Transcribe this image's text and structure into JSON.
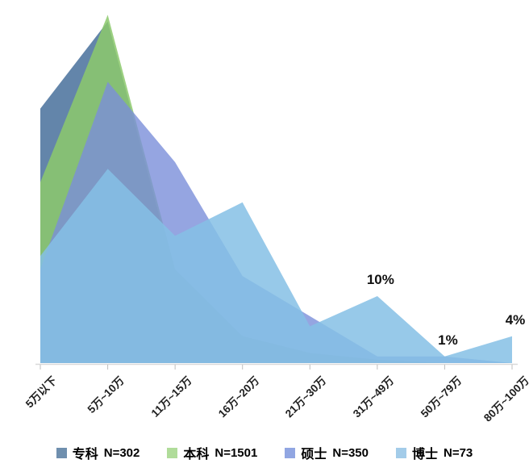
{
  "chart_data": {
    "type": "area",
    "title": "",
    "xlabel": "",
    "ylabel": "",
    "unit": "%",
    "ylim": [
      0,
      54
    ],
    "grid": false,
    "legend_position": "bottom",
    "categories": [
      "5万以下",
      "5万~10万",
      "11万~15万",
      "16万~20万",
      "21万~30万",
      "31万~49万",
      "50万~79万",
      "80万~100万"
    ],
    "series": [
      {
        "name": "专科",
        "n_label": "N=302",
        "values": [
          38,
          51,
          13,
          4,
          1.5,
          0.5,
          0,
          0
        ],
        "color": "#3c6795",
        "legend_color": "#6f8fae",
        "opacity": 0.8
      },
      {
        "name": "本科",
        "n_label": "N=1501",
        "values": [
          27,
          52,
          14,
          4,
          1.5,
          0.5,
          0,
          0
        ],
        "color": "#8cc96c",
        "legend_color": "#b0dc9a",
        "opacity": 0.85
      },
      {
        "name": "硕士",
        "n_label": "N=350",
        "values": [
          14,
          42,
          30,
          13,
          7,
          1,
          1,
          0
        ],
        "color": "#7a8ed9",
        "legend_color": "#91a6e2",
        "opacity": 0.8
      },
      {
        "name": "博士",
        "n_label": "N=73",
        "values": [
          16,
          29,
          19,
          24,
          5.5,
          10,
          1,
          4
        ],
        "color": "#85bfe5",
        "legend_color": "#a3cce9",
        "opacity": 0.85
      }
    ],
    "annotations": [
      {
        "series": "博士",
        "category_index": 5,
        "label": "10%"
      },
      {
        "series": "博士",
        "category_index": 6,
        "label": "1%"
      },
      {
        "series": "博士",
        "category_index": 7,
        "label": "4%"
      }
    ],
    "axis_color": "#d9d9d9",
    "tick_color": "#bfbfbf"
  }
}
